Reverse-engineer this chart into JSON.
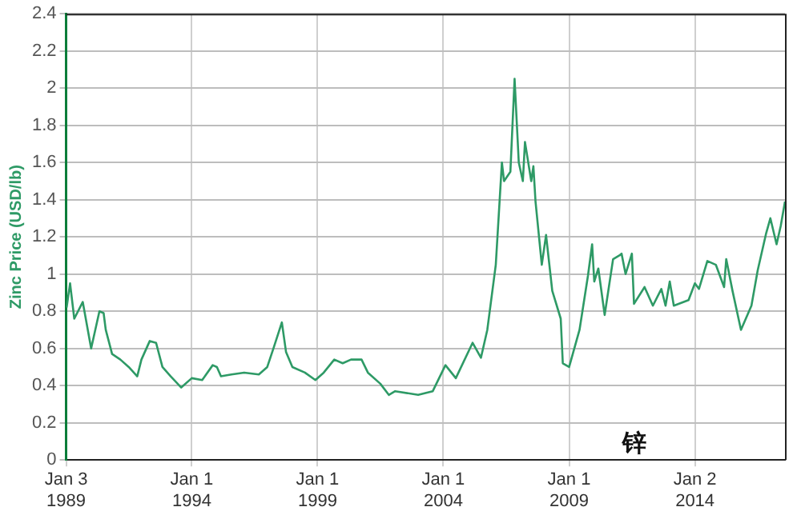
{
  "chart_data": {
    "type": "line",
    "ylabel": "Zinc Price (USD/lb)",
    "annotations": [
      "锌"
    ],
    "x": [
      "1989-01-10",
      "1989-03",
      "1989-05",
      "1989-09",
      "1990-01",
      "1990-05",
      "1990-07",
      "1990-08",
      "1990-11",
      "1991-03",
      "1991-07",
      "1991-11",
      "1992-01",
      "1992-05",
      "1992-08",
      "1992-11",
      "1993-03",
      "1993-08",
      "1994-01",
      "1994-06",
      "1994-11",
      "1995-01",
      "1995-03",
      "1995-08",
      "1996-02",
      "1996-09",
      "1997-01",
      "1997-04",
      "1997-08",
      "1997-10",
      "1998-01",
      "1998-07",
      "1998-12",
      "1999-04",
      "1999-09",
      "2000-01",
      "2000-05",
      "2000-10",
      "2001-01",
      "2001-07",
      "2001-11",
      "2002-02",
      "2003-01",
      "2003-08",
      "2004-02",
      "2004-07",
      "2005-03",
      "2005-07",
      "2005-10",
      "2006-02",
      "2006-05",
      "2006-06",
      "2006-09",
      "2006-11",
      "2007-01",
      "2007-03",
      "2007-04",
      "2007-07",
      "2007-08",
      "2007-09",
      "2007-12",
      "2008-02",
      "2008-05",
      "2008-09",
      "2008-10",
      "2009-01",
      "2009-06",
      "2009-10",
      "2009-12",
      "2010-01",
      "2010-03",
      "2010-06",
      "2010-10",
      "2011-01",
      "2011-02",
      "2011-04",
      "2011-07",
      "2011-08",
      "2012-01",
      "2012-05",
      "2012-09",
      "2012-11",
      "2013-01",
      "2013-03",
      "2013-10",
      "2014-01",
      "2014-03",
      "2014-07",
      "2014-11",
      "2015-03",
      "2015-04",
      "2015-07",
      "2015-11",
      "2016-04",
      "2016-07",
      "2016-11",
      "2017-01",
      "2017-04",
      "2017-06",
      "2017-08"
    ],
    "series": [
      {
        "color": "#2e9a66",
        "values": [
          0.82,
          0.95,
          0.76,
          0.85,
          0.6,
          0.8,
          0.79,
          0.7,
          0.57,
          0.54,
          0.5,
          0.45,
          0.54,
          0.64,
          0.63,
          0.5,
          0.45,
          0.39,
          0.44,
          0.43,
          0.51,
          0.5,
          0.45,
          0.46,
          0.47,
          0.46,
          0.5,
          0.6,
          0.74,
          0.58,
          0.5,
          0.47,
          0.43,
          0.47,
          0.54,
          0.52,
          0.54,
          0.54,
          0.47,
          0.41,
          0.35,
          0.37,
          0.35,
          0.37,
          0.51,
          0.44,
          0.63,
          0.55,
          0.7,
          1.05,
          1.6,
          1.5,
          1.55,
          2.05,
          1.6,
          1.5,
          1.71,
          1.5,
          1.58,
          1.39,
          1.05,
          1.21,
          0.91,
          0.76,
          0.52,
          0.5,
          0.7,
          0.99,
          1.16,
          0.96,
          1.03,
          0.78,
          1.08,
          1.1,
          1.11,
          1.0,
          1.11,
          0.84,
          0.93,
          0.83,
          0.92,
          0.83,
          0.96,
          0.83,
          0.86,
          0.95,
          0.92,
          1.07,
          1.05,
          0.93,
          1.08,
          0.91,
          0.7,
          0.83,
          1.02,
          1.22,
          1.3,
          1.16,
          1.26,
          1.39
        ]
      }
    ],
    "xlim": [
      "1989-01-03",
      "2017-08"
    ],
    "xticks": [
      {
        "value": "1989-01-03",
        "label": "Jan 3 1989"
      },
      {
        "value": "1994-01-01",
        "label": "Jan 1 1994"
      },
      {
        "value": "1999-01-01",
        "label": "Jan 1 1999"
      },
      {
        "value": "2004-01-01",
        "label": "Jan 1 2004"
      },
      {
        "value": "2009-01-01",
        "label": "Jan 1 2009"
      },
      {
        "value": "2014-01-02",
        "label": "Jan 2 2014"
      }
    ],
    "ylim": [
      0,
      2.4
    ],
    "yticks": [
      0,
      0.2,
      0.4,
      0.6,
      0.8,
      1,
      1.2,
      1.4,
      1.6,
      1.8,
      2,
      2.2,
      2.4
    ],
    "grid": true,
    "legend": false,
    "marker": "none",
    "line_style": "solid"
  }
}
